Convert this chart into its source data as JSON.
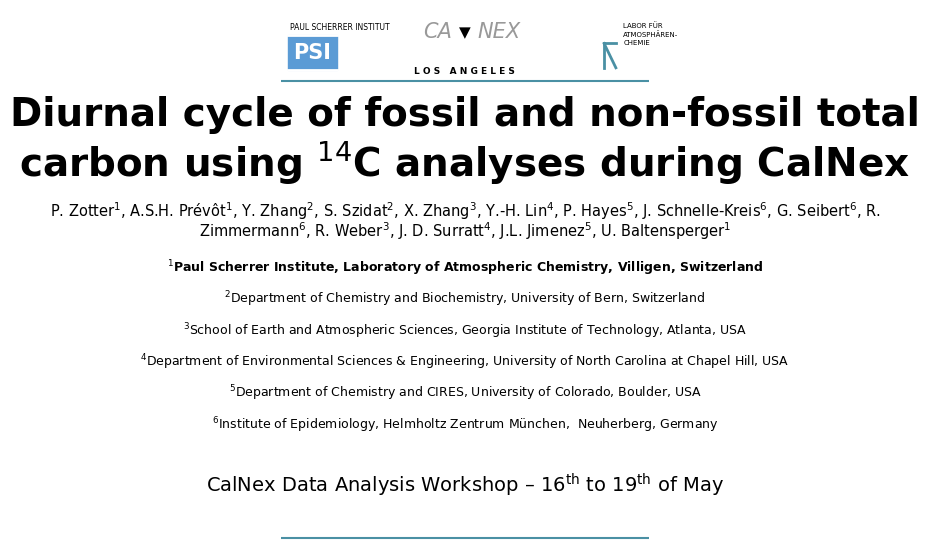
{
  "bg_color": "#ffffff",
  "header_line_color": "#4a90a4",
  "footer_line_color": "#4a90a4",
  "title_line1": "Diurnal cycle of fossil and non-fossil total",
  "title_line2": "carbon using $^{14}$C analyses during CalNex",
  "title_fontsize": 28,
  "authors_line1": "P. Zotter$^1$, A.S.H. Prévôt$^1$, Y. Zhang$^2$, S. Szidat$^2$, X. Zhang$^3$, Y.-H. Lin$^4$, P. Hayes$^5$, J. Schnelle-Kreis$^6$, G. Seibert$^6$, R.",
  "authors_line2": "Zimmermann$^6$, R. Weber$^3$, J. D. Surratt$^4$, J.L. Jimenez$^5$, U. Baltensperger$^1$",
  "authors_fontsize": 10.5,
  "affiliations": [
    "$^1$Paul Scherrer Institute, Laboratory of Atmospheric Chemistry, Villigen, Switzerland",
    "$^2$Department of Chemistry and Biochemistry, University of Bern, Switzerland",
    "$^3$School of Earth and Atmospheric Sciences, Georgia Institute of Technology, Atlanta, USA",
    "$^4$Department of Environmental Sciences & Engineering, University of North Carolina at Chapel Hill, USA",
    "$^5$Department of Chemistry and CIRES, University of Colorado, Boulder, USA",
    "$^6$Institute of Epidemiology, Helmholtz Zentrum München,  Neuherberg, Germany"
  ],
  "affil_fontsize": 9,
  "workshop_text_part1": "CalNex Data Analysis Workshop – 16",
  "workshop_text_sup1": "th",
  "workshop_text_part2": " to 19",
  "workshop_text_sup2": "th",
  "workshop_text_part3": " of May",
  "workshop_fontsize": 14,
  "psi_label_top": "PAUL SCHERRER INSTITUT",
  "psi_box_text": "PSI",
  "lac_label": "LABOR FÜR\nATMOSPHÄREN-\nCHEMIE",
  "calnex_los_angeles": "L O S   A N G E L E S"
}
